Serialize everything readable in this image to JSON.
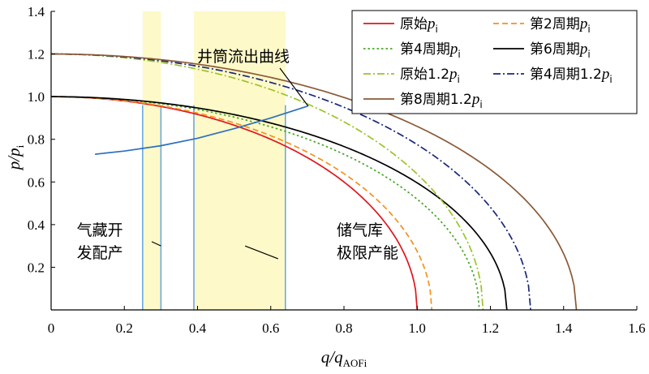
{
  "chart_data": {
    "type": "line",
    "xlabel": {
      "main": "q/q",
      "sub": "AOFi"
    },
    "ylabel": {
      "main": "p/p",
      "sub": "i"
    },
    "xlim": [
      0,
      1.6
    ],
    "ylim": [
      0,
      1.4
    ],
    "x_ticks": [
      "0",
      "0.2",
      "0.4",
      "0.6",
      "0.8",
      "1.0",
      "1.2",
      "1.4",
      "1.6"
    ],
    "y_ticks": [
      "0.2",
      "0.4",
      "0.6",
      "0.8",
      "1.0",
      "1.2",
      "1.4"
    ],
    "grid": false,
    "legend_position": "top-right",
    "series": [
      {
        "name": "原始",
        "name_var": "p",
        "name_sub": "i",
        "color": "#e0161c",
        "dash": "solid",
        "p0": 1.0,
        "qmax": 1.0
      },
      {
        "name": "第2周期",
        "name_var": "p",
        "name_sub": "i",
        "color": "#f4911f",
        "dash": "dash",
        "p0": 1.0,
        "qmax": 1.04
      },
      {
        "name": "第4周期",
        "name_var": "p",
        "name_sub": "i",
        "color": "#48a62a",
        "dash": "dot",
        "p0": 1.0,
        "qmax": 1.17
      },
      {
        "name": "第6周期",
        "name_var": "p",
        "name_sub": "i",
        "color": "#000000",
        "dash": "solid",
        "p0": 1.0,
        "qmax": 1.245
      },
      {
        "name": "原始1.2",
        "name_var": "p",
        "name_sub": "i",
        "color": "#9bc427",
        "dash": "dashdot",
        "p0": 1.2,
        "qmax": 1.18
      },
      {
        "name": "第4周期1.2",
        "name_var": "p",
        "name_sub": "i",
        "color": "#1a2779",
        "dash": "dashdot",
        "p0": 1.2,
        "qmax": 1.31
      },
      {
        "name": "第8周期1.2",
        "name_var": "p",
        "name_sub": "i",
        "color": "#8a5a36",
        "dash": "solid",
        "p0": 1.2,
        "qmax": 1.435
      }
    ],
    "wellbore_curve": {
      "label": "井筒流出曲线",
      "color": "#2c6fbf",
      "x": [
        0.12,
        0.2,
        0.3,
        0.4,
        0.5,
        0.6,
        0.7
      ],
      "y": [
        0.73,
        0.745,
        0.77,
        0.805,
        0.85,
        0.9,
        0.955
      ]
    },
    "vertical_lines": {
      "color": "#6aa8e3",
      "x": [
        0.25,
        0.3,
        0.39,
        0.64
      ]
    },
    "shaded_regions": {
      "color": "#fdf9c9",
      "ranges": [
        [
          0.25,
          0.3
        ],
        [
          0.39,
          0.64
        ]
      ]
    },
    "annotations": [
      {
        "lines": [
          "气藏开",
          "发配产"
        ],
        "x": 0.07,
        "y": 0.35,
        "pointer": [
          [
            0.275,
            0.32
          ],
          [
            0.3,
            0.3
          ]
        ]
      },
      {
        "lines": [
          "储气库",
          "极限产能"
        ],
        "x": 0.78,
        "y": 0.35,
        "pointer": [
          [
            0.62,
            0.24
          ],
          [
            0.53,
            0.3
          ]
        ]
      }
    ]
  }
}
